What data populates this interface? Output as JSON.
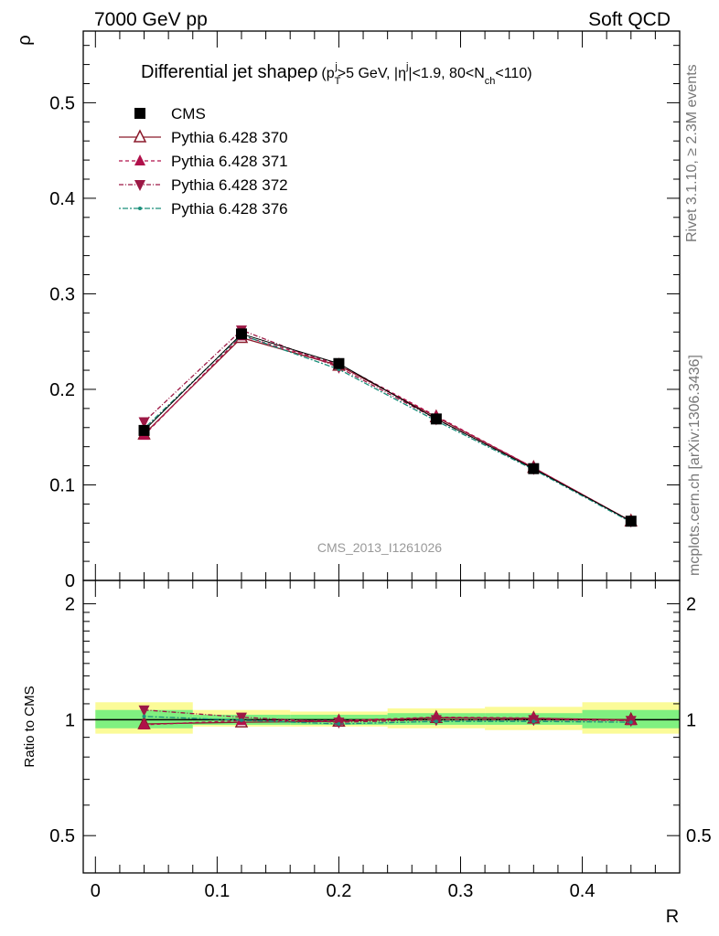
{
  "header": {
    "left": "7000 GeV pp",
    "right": "Soft QCD"
  },
  "side_labels": {
    "rivet": "Rivet 3.1.10, ≥ 2.3M events",
    "mcplots": "mcplots.cern.ch [arXiv:1306.3436]"
  },
  "watermark": "CMS_2013_I1261026",
  "chart_data": [
    {
      "type": "line",
      "title": "Differential jet shapeρ (p_T^j>5 GeV, |η^j|<1.9, 80<N_ch<110)",
      "title_parts": {
        "main": "Differential jet shape",
        "rho": "ρ",
        "open": "(p",
        "sub_T": "T",
        "sup_j1": "j",
        "mid1": ">5 GeV, |η",
        "sup_j2": "j",
        "mid2": "|<1.9, 80<N",
        "sub_ch": "ch",
        "end": "<110)"
      },
      "ylabel": "ρ",
      "xlabel": "",
      "ylim": [
        0,
        0.575
      ],
      "xlim": [
        -0.01,
        0.48
      ],
      "yticks": [
        0,
        0.1,
        0.2,
        0.3,
        0.4,
        0.5
      ],
      "ytick_labels": [
        "0",
        "0.1",
        "0.2",
        "0.3",
        "0.4",
        "0.5"
      ],
      "x": [
        0.04,
        0.12,
        0.2,
        0.28,
        0.36,
        0.44
      ],
      "series": [
        {
          "name": "CMS",
          "values": [
            0.157,
            0.258,
            0.227,
            0.169,
            0.117,
            0.062
          ],
          "color": "#000000",
          "marker": "square",
          "dash": ""
        },
        {
          "name": "Pythia 6.428 370",
          "values": [
            0.153,
            0.254,
            0.225,
            0.171,
            0.118,
            0.062
          ],
          "color": "#8b1a2b",
          "marker": "triangle-open",
          "dash": ""
        },
        {
          "name": "Pythia 6.428 371",
          "values": [
            0.152,
            0.256,
            0.226,
            0.172,
            0.118,
            0.062
          ],
          "color": "#b0104a",
          "marker": "triangle-up",
          "dash": "4,3"
        },
        {
          "name": "Pythia 6.428 372",
          "values": [
            0.166,
            0.262,
            0.223,
            0.169,
            0.117,
            0.062
          ],
          "color": "#9c1845",
          "marker": "triangle-down",
          "dash": "5,2,1,2"
        },
        {
          "name": "Pythia 6.428 376",
          "values": [
            0.159,
            0.257,
            0.221,
            0.167,
            0.116,
            0.061
          ],
          "color": "#1a8f7a",
          "marker": "dot",
          "dash": "2,2,6,2"
        }
      ],
      "legend": "top-left"
    },
    {
      "type": "line",
      "title": "",
      "ylabel": "Ratio to CMS",
      "xlabel": "R",
      "ylim": [
        0.4,
        2.3
      ],
      "log_y": true,
      "xlim": [
        -0.01,
        0.48
      ],
      "yticks": [
        0.5,
        1,
        2
      ],
      "ytick_labels": [
        "0.5",
        "1",
        "2"
      ],
      "right_ytick_labels": [
        "0.5",
        "1",
        "2"
      ],
      "xticks": [
        0,
        0.1,
        0.2,
        0.3,
        0.4
      ],
      "xtick_labels": [
        "0",
        "0.1",
        "0.2",
        "0.3",
        "0.4"
      ],
      "bands": {
        "bins": [
          [
            0,
            0.08
          ],
          [
            0.08,
            0.16
          ],
          [
            0.16,
            0.24
          ],
          [
            0.24,
            0.32
          ],
          [
            0.32,
            0.4
          ],
          [
            0.4,
            0.48
          ]
        ],
        "inner": [
          [
            0.95,
            1.06
          ],
          [
            0.97,
            1.03
          ],
          [
            0.97,
            1.03
          ],
          [
            0.97,
            1.04
          ],
          [
            0.97,
            1.04
          ],
          [
            0.95,
            1.06
          ]
        ],
        "outer": [
          [
            0.92,
            1.11
          ],
          [
            0.96,
            1.06
          ],
          [
            0.96,
            1.05
          ],
          [
            0.95,
            1.07
          ],
          [
            0.94,
            1.08
          ],
          [
            0.92,
            1.11
          ]
        ],
        "inner_color": "#80f080",
        "outer_color": "#fbfb98"
      },
      "x": [
        0.04,
        0.12,
        0.2,
        0.28,
        0.36,
        0.44
      ],
      "series": [
        {
          "name": "Pythia 6.428 370",
          "values": [
            0.975,
            0.985,
            0.99,
            1.012,
            1.008,
            1.0
          ],
          "color": "#8b1a2b",
          "marker": "triangle-open",
          "dash": ""
        },
        {
          "name": "Pythia 6.428 371",
          "values": [
            0.97,
            0.995,
            0.995,
            1.015,
            1.01,
            0.995
          ],
          "color": "#b0104a",
          "marker": "triangle-up",
          "dash": "4,3"
        },
        {
          "name": "Pythia 6.428 372",
          "values": [
            1.06,
            1.015,
            0.985,
            1.0,
            1.0,
            0.995
          ],
          "color": "#9c1845",
          "marker": "triangle-down",
          "dash": "5,2,1,2"
        },
        {
          "name": "Pythia 6.428 376",
          "values": [
            1.02,
            0.997,
            0.975,
            0.99,
            0.99,
            0.985
          ],
          "color": "#1a8f7a",
          "marker": "dot",
          "dash": "2,2,6,2"
        }
      ]
    }
  ]
}
